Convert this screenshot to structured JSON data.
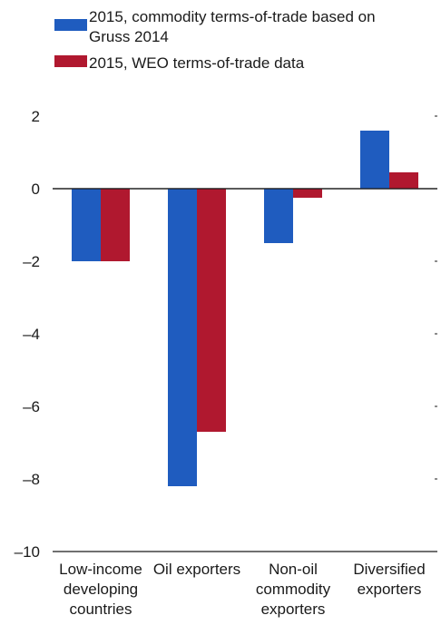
{
  "chart_data": {
    "type": "bar",
    "categories": [
      [
        "Low-income",
        "developing",
        "countries"
      ],
      [
        "Oil exporters"
      ],
      [
        "Non-oil",
        "commodity",
        "exporters"
      ],
      [
        "Diversified",
        "exporters"
      ]
    ],
    "series": [
      {
        "name": [
          "2015, commodity terms-of-trade based on",
          "Gruss 2014"
        ],
        "color": "#1f5cbf",
        "values": [
          -2.0,
          -8.2,
          -1.5,
          1.6
        ]
      },
      {
        "name": [
          "2015, WEO terms-of-trade data"
        ],
        "color": "#b0182f",
        "values": [
          -2.0,
          -6.7,
          -0.25,
          0.45
        ]
      }
    ],
    "ylim": [
      -10,
      2.9
    ],
    "yticks": [
      2,
      0,
      -2,
      -4,
      -6,
      -8,
      -10
    ],
    "ytick_labels": [
      "2",
      "0",
      "–2",
      "–4",
      "–6",
      "–8",
      "–10"
    ],
    "legend_position": "top-left",
    "grid": false
  }
}
